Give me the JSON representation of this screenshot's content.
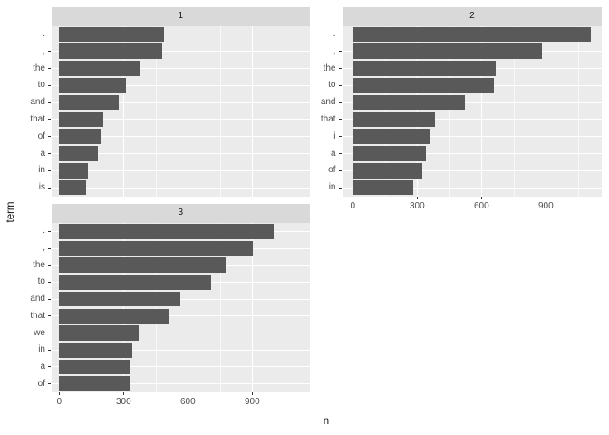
{
  "chart_data": {
    "type": "bar",
    "orientation": "horizontal",
    "title": "",
    "xlabel": "n",
    "ylabel": "term",
    "x_ticks": [
      0,
      300,
      600,
      900
    ],
    "x_minor_ticks": [
      150,
      450,
      750,
      1050
    ],
    "xlim": [
      0,
      1165
    ],
    "grid": true,
    "legend": "none",
    "facets": [
      {
        "label": "1",
        "terms": [
          ".",
          ",",
          "the",
          "to",
          "and",
          "that",
          "of",
          "a",
          "in",
          "is"
        ],
        "values": [
          490,
          482,
          375,
          313,
          276,
          207,
          196,
          182,
          134,
          127
        ]
      },
      {
        "label": "2",
        "terms": [
          ".",
          ",",
          "the",
          "to",
          "and",
          "that",
          "i",
          "a",
          "of",
          "in"
        ],
        "values": [
          1110,
          880,
          665,
          658,
          524,
          385,
          363,
          342,
          325,
          282
        ]
      },
      {
        "label": "3",
        "terms": [
          ".",
          ",",
          "the",
          "to",
          "and",
          "that",
          "we",
          "in",
          "a",
          "of"
        ],
        "values": [
          1000,
          905,
          775,
          710,
          567,
          514,
          370,
          339,
          334,
          327
        ]
      }
    ]
  },
  "colors": {
    "bar": "#595959",
    "panel_background": "#EBEBEB",
    "strip_background": "#D9D9D9",
    "gridline": "#FFFFFF",
    "axis_text": "#4D4D4D",
    "strip_text": "#1A1A1A",
    "axis_title": "#111111",
    "tick_mark": "#333333",
    "page_background": "#FFFFFF"
  }
}
